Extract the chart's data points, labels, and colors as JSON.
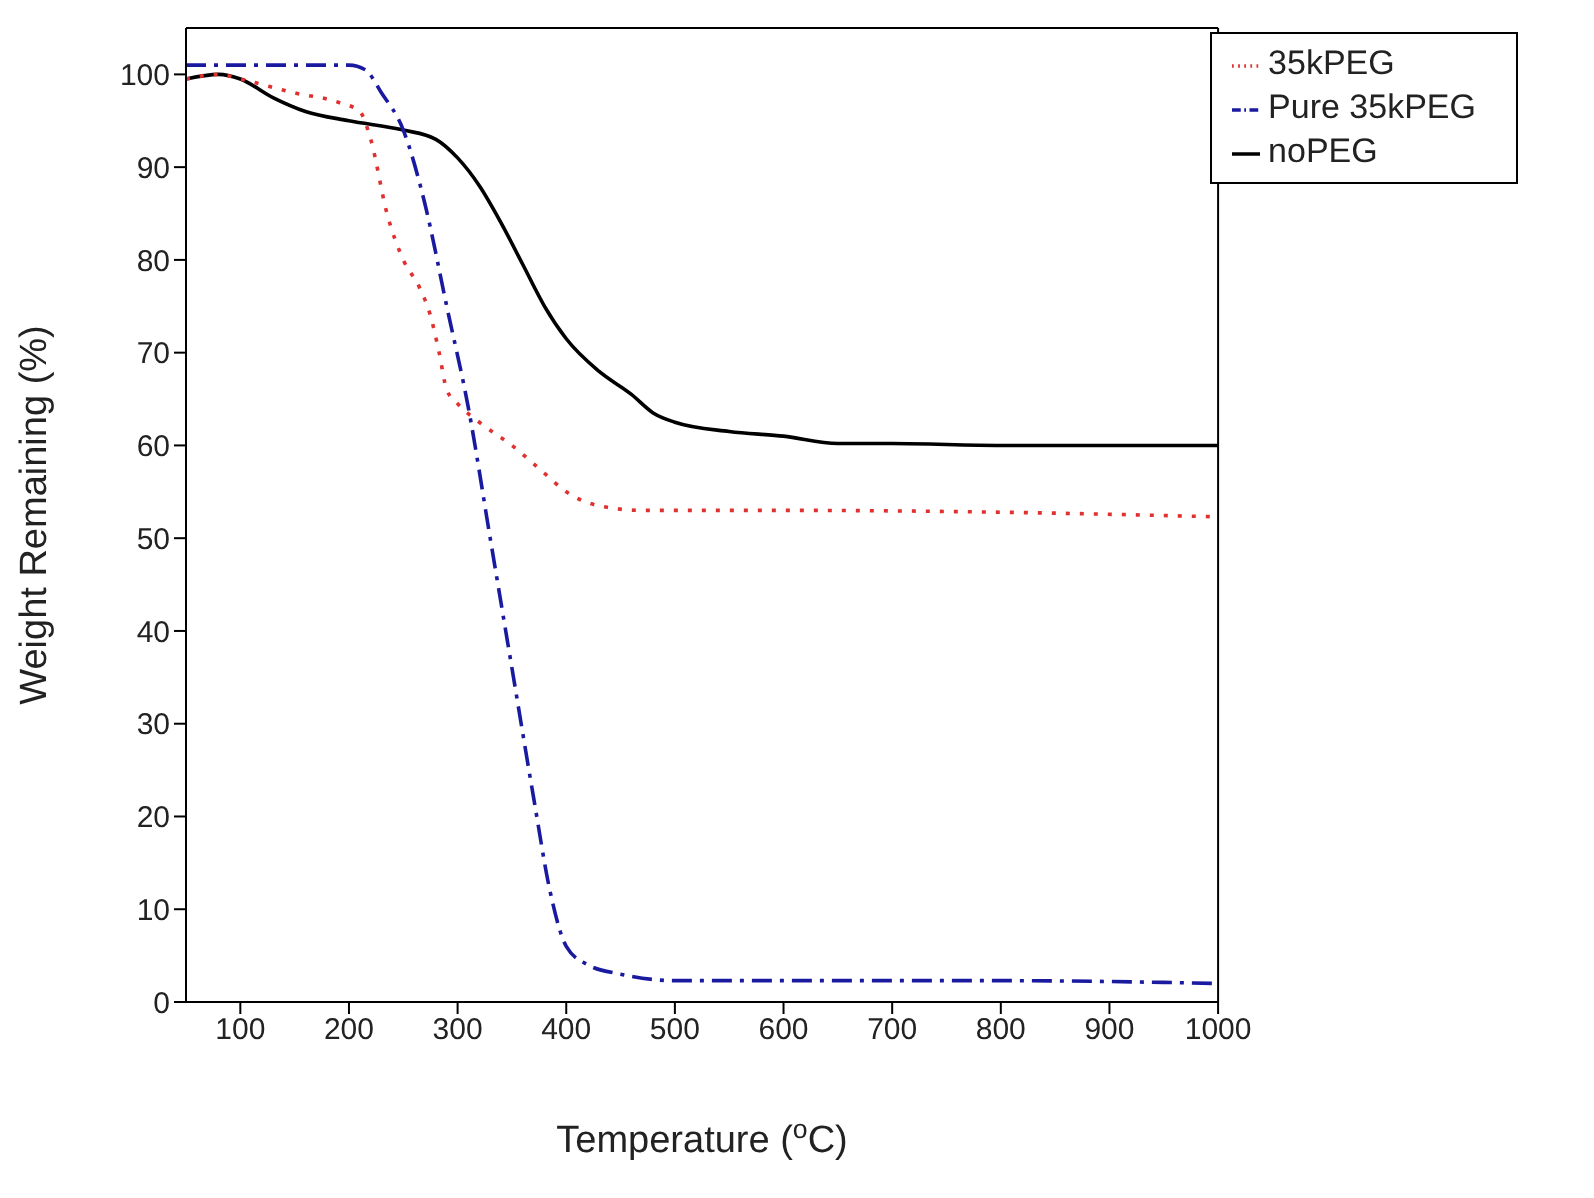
{
  "chart_data": {
    "type": "line",
    "xlabel": "Temperature ($^{o}$C)",
    "ylabel": "Weight Remaining (%)",
    "xlim": [
      50,
      1000
    ],
    "xticks": [
      100,
      200,
      300,
      400,
      500,
      600,
      700,
      800,
      900,
      1000
    ],
    "ylim": [
      0,
      105
    ],
    "yticks": [
      0,
      10,
      20,
      30,
      40,
      50,
      60,
      70,
      80,
      90,
      100
    ],
    "grid": false,
    "legend": "top right",
    "marker": "none",
    "series": [
      {
        "name": "noPEG",
        "color": "#000000",
        "line_style": "solid",
        "x": [
          50,
          80,
          100,
          130,
          160,
          200,
          250,
          280,
          300,
          320,
          340,
          360,
          380,
          400,
          430,
          460,
          480,
          500,
          550,
          600,
          650,
          700,
          800,
          900,
          1000
        ],
        "values": [
          99.5,
          100,
          99.5,
          97.5,
          96,
          95,
          94,
          93,
          91,
          88,
          84,
          79.5,
          75,
          71.5,
          68,
          65.5,
          63.5,
          62.5,
          61.5,
          61,
          60.2,
          60.2,
          60,
          60,
          60
        ]
      },
      {
        "name": "35kPEG",
        "color": "#e03030",
        "line_style": "dotted",
        "x": [
          50,
          80,
          100,
          150,
          190,
          210,
          220,
          235,
          250,
          265,
          275,
          283,
          290,
          300,
          320,
          350,
          380,
          400,
          430,
          470,
          600,
          800,
          1000
        ],
        "values": [
          99.5,
          100,
          99.5,
          98,
          97,
          96,
          93,
          85,
          80,
          77,
          74,
          70,
          66,
          64.5,
          62.5,
          60,
          57,
          55,
          53.5,
          53,
          53,
          52.8,
          52.3
        ]
      },
      {
        "name": "Pure 35kPEG",
        "color": "#1a1aa0",
        "line_style": "dashed",
        "x": [
          50,
          200,
          215,
          230,
          250,
          270,
          290,
          310,
          330,
          350,
          370,
          385,
          400,
          420,
          450,
          500,
          600,
          800,
          1000
        ],
        "values": [
          101,
          101,
          100.5,
          98,
          94,
          86,
          75,
          64,
          50,
          36,
          22,
          12,
          6,
          4,
          3,
          2.3,
          2.3,
          2.3,
          2
        ]
      }
    ]
  }
}
